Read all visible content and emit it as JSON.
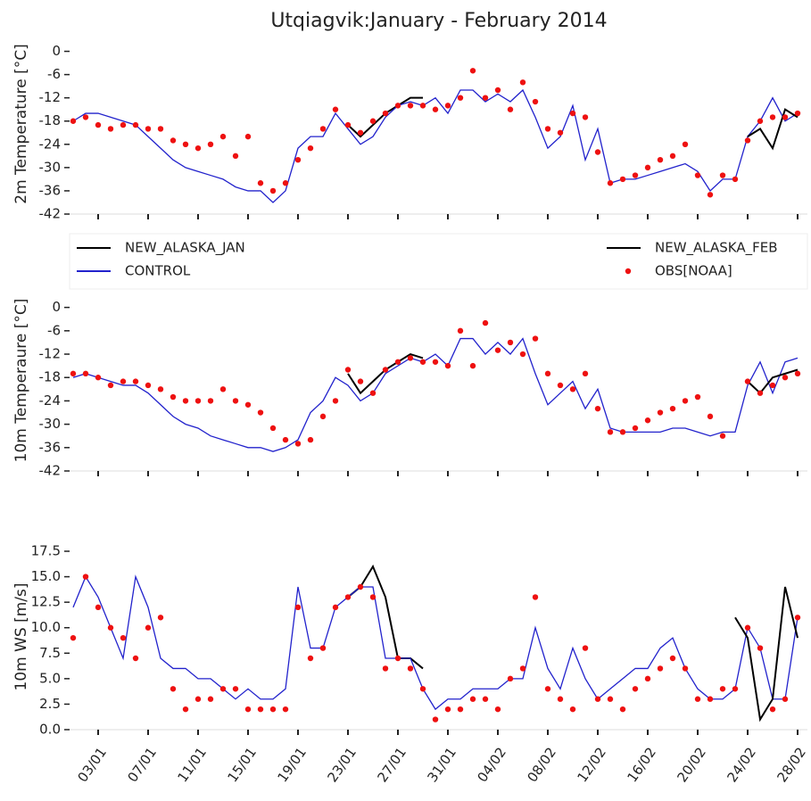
{
  "chart_data": [
    {
      "type": "line",
      "title": "Utqiagvik:January - February 2014",
      "ylabel": "2m Temperature [°C]",
      "ylim": [
        -42,
        4.5
      ],
      "yticks": [
        0,
        -6,
        -12,
        -18,
        -24,
        -30,
        -36,
        -42
      ],
      "series": [
        {
          "name": "NEW_ALASKA_JAN",
          "color": "#000000",
          "mode": "lines",
          "values": [
            null,
            null,
            null,
            null,
            null,
            null,
            null,
            null,
            null,
            null,
            null,
            null,
            null,
            null,
            null,
            null,
            null,
            null,
            null,
            null,
            null,
            null,
            -19,
            -22,
            -19,
            -16,
            -14,
            -12,
            -12,
            null,
            null,
            null,
            null,
            null,
            null,
            null,
            null,
            null,
            null,
            null,
            null,
            null,
            null,
            null,
            null,
            null,
            null,
            null,
            null,
            null,
            null,
            null,
            null,
            null,
            null,
            null,
            null,
            null,
            null
          ]
        },
        {
          "name": "CONTROL",
          "color": "#2222cc",
          "mode": "lines",
          "values": [
            -18,
            -16,
            -16,
            -17,
            -18,
            -19,
            -22,
            -25,
            -28,
            -30,
            -31,
            -32,
            -33,
            -35,
            -36,
            -36,
            -39,
            -36,
            -25,
            -22,
            -22,
            -16,
            -20,
            -24,
            -22,
            -17,
            -14,
            -13,
            -14,
            -12,
            -16,
            -10,
            -10,
            -13,
            -11,
            -13,
            -10,
            -17,
            -25,
            -22,
            -14,
            -28,
            -20,
            -34,
            -33,
            -33,
            -32,
            -31,
            -30,
            -29,
            -31,
            -36,
            -33,
            -33,
            -22,
            -18,
            -12,
            -18,
            -16
          ]
        },
        {
          "name": "NEW_ALASKA_FEB",
          "color": "#000000",
          "mode": "lines",
          "values": [
            null,
            null,
            null,
            null,
            null,
            null,
            null,
            null,
            null,
            null,
            null,
            null,
            null,
            null,
            null,
            null,
            null,
            null,
            null,
            null,
            null,
            null,
            null,
            null,
            null,
            null,
            null,
            null,
            null,
            null,
            null,
            null,
            null,
            null,
            null,
            null,
            null,
            null,
            null,
            null,
            null,
            null,
            null,
            null,
            null,
            null,
            null,
            null,
            null,
            null,
            null,
            null,
            null,
            null,
            -22,
            -20,
            -25,
            -15,
            -17
          ]
        },
        {
          "name": "OBS[NOAA]",
          "color": "#ee1111",
          "mode": "markers",
          "values": [
            -18,
            -17,
            -19,
            -20,
            -19,
            -19,
            -20,
            -20,
            -23,
            -24,
            -25,
            -24,
            -22,
            -27,
            -22,
            -34,
            -36,
            -34,
            -28,
            -25,
            -20,
            -15,
            -19,
            -21,
            -18,
            -16,
            -14,
            -14,
            -14,
            -15,
            -14,
            -12,
            -5,
            -12,
            -10,
            -15,
            -8,
            -13,
            -20,
            -21,
            -16,
            -17,
            -26,
            -34,
            -33,
            -32,
            -30,
            -28,
            -27,
            -24,
            -32,
            -37,
            -32,
            -33,
            -23,
            -18,
            -17,
            -17,
            -16
          ]
        }
      ]
    },
    {
      "type": "line",
      "ylabel": "10m Temperaure [°C]",
      "legend": "top",
      "ylim": [
        -42,
        4.5
      ],
      "yticks": [
        0,
        -6,
        -12,
        -18,
        -24,
        -30,
        -36,
        -42
      ],
      "series": [
        {
          "name": "NEW_ALASKA_JAN",
          "color": "#000000",
          "mode": "lines",
          "values": [
            null,
            null,
            null,
            null,
            null,
            null,
            null,
            null,
            null,
            null,
            null,
            null,
            null,
            null,
            null,
            null,
            null,
            null,
            null,
            null,
            null,
            null,
            -17,
            -22,
            -19,
            -16,
            -14,
            -12,
            -13,
            null,
            null,
            null,
            null,
            null,
            null,
            null,
            null,
            null,
            null,
            null,
            null,
            null,
            null,
            null,
            null,
            null,
            null,
            null,
            null,
            null,
            null,
            null,
            null,
            null,
            null,
            null,
            null,
            null,
            null
          ]
        },
        {
          "name": "CONTROL",
          "color": "#2222cc",
          "mode": "lines",
          "values": [
            -18,
            -17,
            -18,
            -19,
            -20,
            -20,
            -22,
            -25,
            -28,
            -30,
            -31,
            -33,
            -34,
            -35,
            -36,
            -36,
            -37,
            -36,
            -34,
            -27,
            -24,
            -18,
            -20,
            -24,
            -22,
            -17,
            -15,
            -13,
            -14,
            -12,
            -15,
            -8,
            -8,
            -12,
            -9,
            -12,
            -8,
            -17,
            -25,
            -22,
            -19,
            -26,
            -21,
            -31,
            -32,
            -32,
            -32,
            -32,
            -31,
            -31,
            -32,
            -33,
            -32,
            -32,
            -20,
            -14,
            -22,
            -14,
            -13
          ]
        },
        {
          "name": "NEW_ALASKA_FEB",
          "color": "#000000",
          "mode": "lines",
          "values": [
            null,
            null,
            null,
            null,
            null,
            null,
            null,
            null,
            null,
            null,
            null,
            null,
            null,
            null,
            null,
            null,
            null,
            null,
            null,
            null,
            null,
            null,
            null,
            null,
            null,
            null,
            null,
            null,
            null,
            null,
            null,
            null,
            null,
            null,
            null,
            null,
            null,
            null,
            null,
            null,
            null,
            null,
            null,
            null,
            null,
            null,
            null,
            null,
            null,
            null,
            null,
            null,
            null,
            null,
            -19,
            -22,
            -18,
            -17,
            -16
          ]
        },
        {
          "name": "OBS[NOAA]",
          "color": "#ee1111",
          "mode": "markers",
          "values": [
            -17,
            -17,
            -18,
            -20,
            -19,
            -19,
            -20,
            -21,
            -23,
            -24,
            -24,
            -24,
            -21,
            -24,
            -25,
            -27,
            -31,
            -34,
            -35,
            -34,
            -28,
            -24,
            -16,
            -19,
            -22,
            -16,
            -14,
            -13,
            -14,
            -14,
            -15,
            -6,
            -15,
            -4,
            -11,
            -9,
            -12,
            -8,
            -17,
            -20,
            -21,
            -17,
            -26,
            -32,
            -32,
            -31,
            -29,
            -27,
            -26,
            -24,
            -23,
            -28,
            -33,
            null,
            -19,
            -22,
            -20,
            -18,
            -17
          ]
        }
      ]
    },
    {
      "type": "line",
      "ylabel": "10m WS [m/s]",
      "ylim": [
        0,
        18.2
      ],
      "yticks": [
        {
          "value": 0,
          "label": "0.0"
        },
        2.5,
        {
          "value": 5,
          "label": "5.0"
        },
        7.5,
        {
          "value": 10,
          "label": "10.0"
        },
        12.5,
        {
          "value": 15,
          "label": "15.0"
        },
        17.5
      ],
      "x": [
        "01/01",
        "02/01",
        "03/01",
        "04/01",
        "05/01",
        "06/01",
        "07/01",
        "08/01",
        "09/01",
        "10/01",
        "11/01",
        "12/01",
        "13/01",
        "14/01",
        "15/01",
        "16/01",
        "17/01",
        "18/01",
        "19/01",
        "20/01",
        "21/01",
        "22/01",
        "23/01",
        "24/01",
        "25/01",
        "26/01",
        "27/01",
        "28/01",
        "29/01",
        "30/01",
        "31/01",
        "01/02",
        "02/02",
        "03/02",
        "04/02",
        "05/02",
        "06/02",
        "07/02",
        "08/02",
        "09/02",
        "10/02",
        "11/02",
        "12/02",
        "13/02",
        "14/02",
        "15/02",
        "16/02",
        "17/02",
        "18/02",
        "19/02",
        "20/02",
        "21/02",
        "22/02",
        "23/02",
        "24/02",
        "25/02",
        "26/02",
        "27/02",
        "28/02"
      ],
      "xticks": [
        "03/01",
        "07/01",
        "11/01",
        "15/01",
        "19/01",
        "23/01",
        "27/01",
        "31/01",
        "04/02",
        "08/02",
        "12/02",
        "16/02",
        "20/02",
        "24/02",
        "28/02"
      ],
      "series": [
        {
          "name": "NEW_ALASKA_JAN",
          "color": "#000000",
          "mode": "lines",
          "values": [
            null,
            null,
            null,
            null,
            null,
            null,
            null,
            null,
            null,
            null,
            null,
            null,
            null,
            null,
            null,
            null,
            null,
            null,
            null,
            null,
            null,
            null,
            13,
            14,
            16,
            13,
            7,
            7,
            6,
            null,
            null,
            null,
            null,
            null,
            null,
            null,
            null,
            null,
            null,
            null,
            null,
            null,
            null,
            null,
            null,
            null,
            null,
            null,
            null,
            null,
            null,
            null,
            null,
            null,
            null,
            null,
            null,
            null,
            null
          ]
        },
        {
          "name": "CONTROL",
          "color": "#2222cc",
          "mode": "lines",
          "values": [
            12,
            15,
            13,
            10,
            7,
            15,
            12,
            7,
            6,
            6,
            5,
            5,
            4,
            3,
            4,
            3,
            3,
            4,
            14,
            8,
            8,
            12,
            13,
            14,
            14,
            7,
            7,
            7,
            4,
            2,
            3,
            3,
            4,
            4,
            4,
            5,
            5,
            10,
            6,
            4,
            8,
            5,
            3,
            4,
            5,
            6,
            6,
            8,
            9,
            6,
            4,
            3,
            3,
            4,
            10,
            8,
            3,
            3,
            11
          ]
        },
        {
          "name": "NEW_ALASKA_FEB",
          "color": "#000000",
          "mode": "lines",
          "values": [
            null,
            null,
            null,
            null,
            null,
            null,
            null,
            null,
            null,
            null,
            null,
            null,
            null,
            null,
            null,
            null,
            null,
            null,
            null,
            null,
            null,
            null,
            null,
            null,
            null,
            null,
            null,
            null,
            null,
            null,
            null,
            null,
            null,
            null,
            null,
            null,
            null,
            null,
            null,
            null,
            null,
            null,
            null,
            null,
            null,
            null,
            null,
            null,
            null,
            null,
            null,
            null,
            null,
            11,
            9,
            1,
            3,
            14,
            9
          ]
        },
        {
          "name": "OBS[NOAA]",
          "color": "#ee1111",
          "mode": "markers",
          "values": [
            9,
            15,
            12,
            10,
            9,
            7,
            10,
            11,
            4,
            2,
            3,
            3,
            4,
            4,
            2,
            2,
            2,
            2,
            12,
            7,
            8,
            12,
            13,
            14,
            13,
            6,
            7,
            6,
            4,
            1,
            2,
            2,
            3,
            3,
            2,
            5,
            6,
            13,
            4,
            3,
            2,
            8,
            3,
            3,
            2,
            4,
            5,
            6,
            7,
            6,
            3,
            3,
            4,
            4,
            10,
            8,
            2,
            3,
            11
          ]
        }
      ]
    }
  ]
}
